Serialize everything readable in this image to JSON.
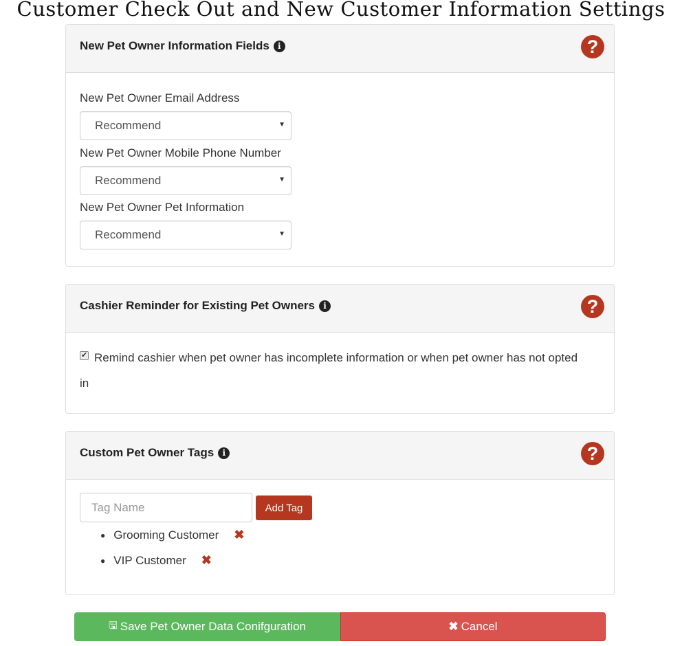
{
  "page_title": "Customer Check Out and New Customer Information Settings",
  "panels": {
    "info_fields": {
      "title": "New Pet Owner Information Fields",
      "fields": [
        {
          "label": "New Pet Owner Email Address",
          "value": "Recommend"
        },
        {
          "label": "New Pet Owner Mobile Phone Number",
          "value": "Recommend"
        },
        {
          "label": "New Pet Owner Pet Information",
          "value": "Recommend"
        }
      ]
    },
    "reminder": {
      "title": "Cashier Reminder for Existing Pet Owners",
      "checkbox_label": "Remind cashier when pet owner has incomplete information or when pet owner has not opted",
      "checkbox_label_wrap": "in",
      "checked": true
    },
    "tags": {
      "title": "Custom Pet Owner Tags",
      "placeholder": "Tag Name",
      "add_label": "Add Tag",
      "items": [
        "Grooming Customer",
        "VIP Customer"
      ]
    }
  },
  "icons": {
    "info": "info-circle-icon",
    "help": "question-circle-icon",
    "remove": "times-icon",
    "save": "floppy-disk-icon",
    "cancel": "times-icon"
  },
  "buttons": {
    "save": "Save Pet Owner Data Conifguration",
    "cancel": "Cancel"
  },
  "colors": {
    "accent": "#b5371f",
    "save": "#5cb85c",
    "cancel": "#d9534f"
  }
}
